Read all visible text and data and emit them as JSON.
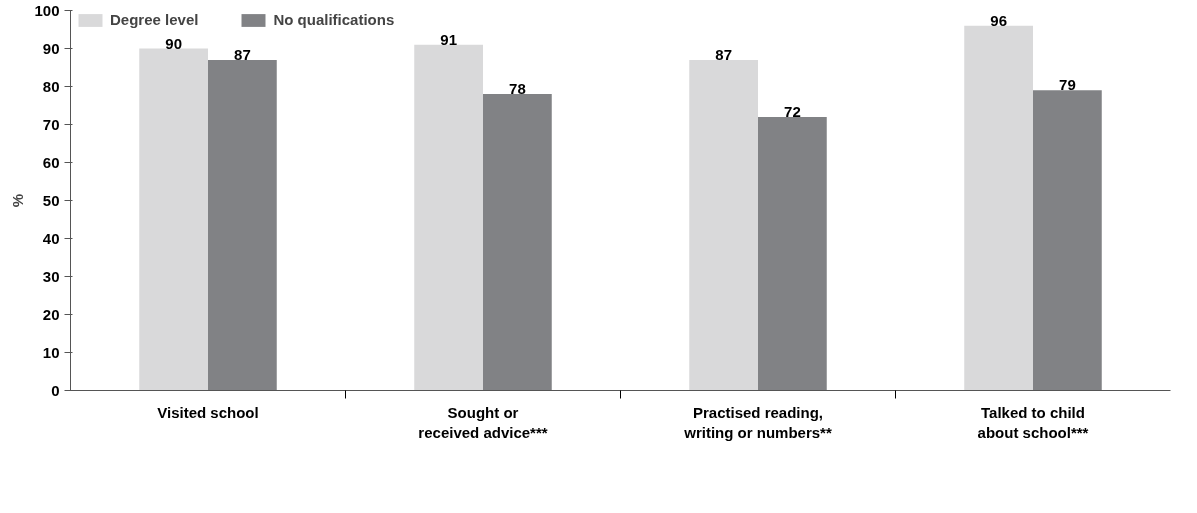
{
  "chart_data": {
    "type": "bar",
    "ylabel": "%",
    "categories": [
      "Visited school",
      "Sought or\nreceived advice***",
      "Practised reading,\nwriting or numbers**",
      "Talked to child\nabout school***"
    ],
    "series": [
      {
        "name": "Degree level",
        "color": "#d9d9da",
        "values": [
          90,
          91,
          87,
          96
        ]
      },
      {
        "name": "No qualifications",
        "color": "#818285",
        "values": [
          87,
          78,
          72,
          79
        ]
      }
    ],
    "ylim": [
      0,
      100
    ],
    "yticks": [
      0,
      10,
      20,
      30,
      40,
      50,
      60,
      70,
      80,
      90,
      100
    ],
    "data_labels": true,
    "grid": false,
    "legend": "top left"
  }
}
